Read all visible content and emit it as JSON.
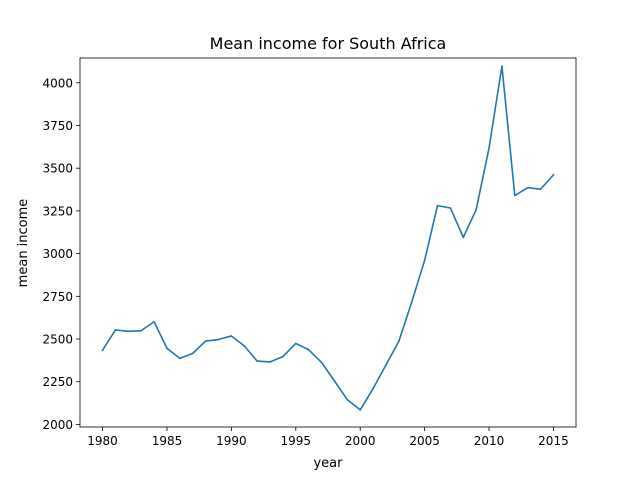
{
  "chart_data": {
    "type": "line",
    "title": "Mean income for South Africa",
    "xlabel": "year",
    "ylabel": "mean income",
    "xlim": [
      1978.25,
      2016.75
    ],
    "ylim": [
      1985,
      4145
    ],
    "xticks": [
      1980,
      1985,
      1990,
      1995,
      2000,
      2005,
      2010,
      2015
    ],
    "yticks": [
      2000,
      2250,
      2500,
      2750,
      3000,
      3250,
      3500,
      3750,
      4000
    ],
    "grid": false,
    "legend": "none",
    "colors": {
      "line": "#1f77b4"
    },
    "series": [
      {
        "x": [
          1980,
          1981,
          1982,
          1983,
          1984,
          1985,
          1986,
          1987,
          1988,
          1989,
          1990,
          1991,
          1992,
          1993,
          1994,
          1995,
          1996,
          1997,
          1998,
          1999,
          2000,
          2001,
          2002,
          2003,
          2004,
          2005,
          2006,
          2007,
          2008,
          2009,
          2010,
          2011,
          2012,
          2013,
          2014,
          2015
        ],
        "values": [
          2435,
          2553,
          2545,
          2549,
          2601,
          2446,
          2387,
          2416,
          2488,
          2497,
          2518,
          2460,
          2371,
          2366,
          2397,
          2474,
          2437,
          2363,
          2255,
          2145,
          2085,
          2210,
          2348,
          2487,
          2716,
          2960,
          3281,
          3267,
          3095,
          3257,
          3618,
          4097,
          3340,
          3386,
          3377,
          3461
        ]
      }
    ]
  }
}
